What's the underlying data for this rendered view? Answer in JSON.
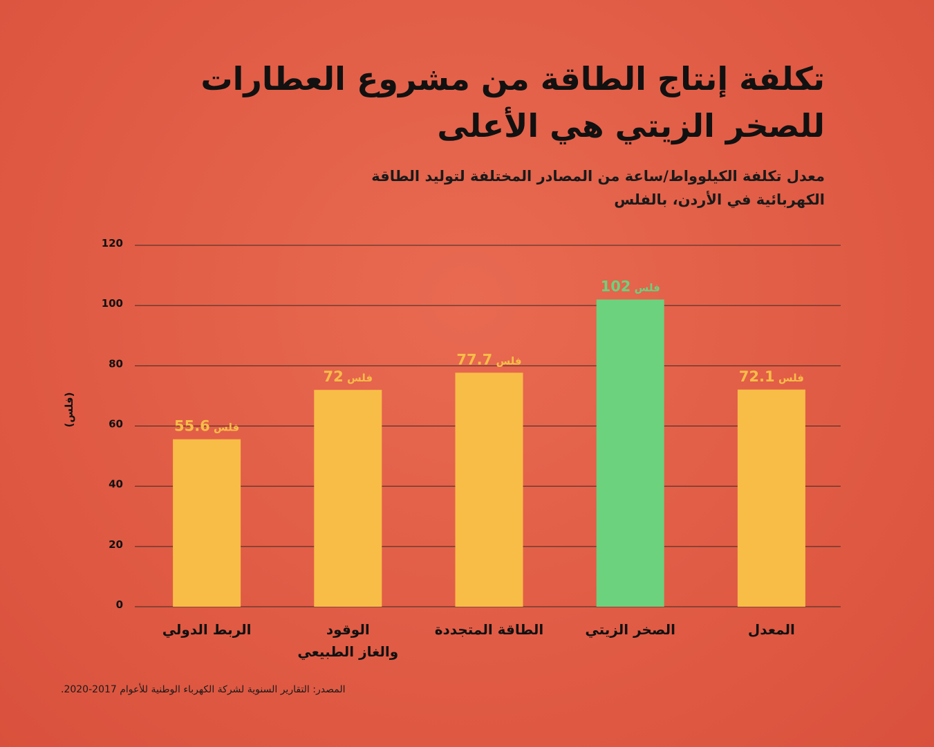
{
  "title_lines": [
    "تكلفة إنتاج الطاقة من مشروع العطارات",
    "للصخر الزيتي هي الأعلى"
  ],
  "subtitle": "معدل تكلفة الكيلوواط/ساعة من المصادر المختلفة لتوليد الطاقة الكهربائية في الأردن، بالفلس",
  "source": "المصدر: التقارير السنوية لشركة الكهرباء الوطنية للأعوام 2017-2020.",
  "chart_data": {
    "type": "bar",
    "categories": [
      "الربط الدولي",
      "الوقود والغاز الطبيعي",
      "الطاقة المتجددة",
      "الصخر الزيتي",
      "المعدل"
    ],
    "category_lines": [
      [
        "الربط الدولي"
      ],
      [
        "الوقود",
        "والغاز الطبيعي"
      ],
      [
        "الطاقة المتجددة"
      ],
      [
        "الصخر الزيتي"
      ],
      [
        "المعدل"
      ]
    ],
    "values": [
      55.6,
      72,
      77.7,
      102,
      72.1
    ],
    "value_labels": [
      "55.6",
      "72",
      "77.7",
      "102",
      "72.1"
    ],
    "value_unit": "فلس",
    "ylabel": "(فلس)",
    "ylim": [
      0,
      120
    ],
    "yticks": [
      0,
      20,
      40,
      60,
      80,
      100,
      120
    ],
    "grid": true,
    "highlight_index": 3,
    "colors": {
      "bar": "#f8bd47",
      "highlight": "#6cd27d",
      "label": "#f8bd47",
      "highlight_label": "#6cd27d",
      "grid": "#3a2a24",
      "background": "#e25e46"
    }
  }
}
